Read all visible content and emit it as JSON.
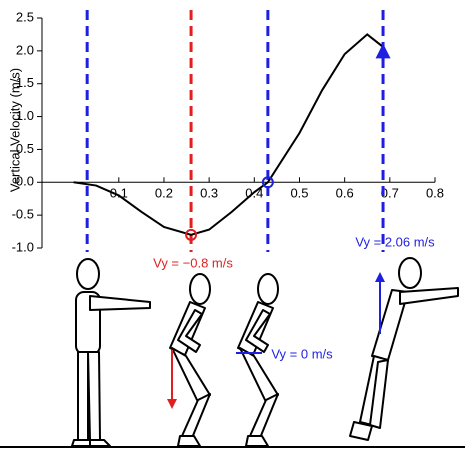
{
  "chart_data": {
    "type": "line",
    "ylabel": "Vertical Velocity (m/s)",
    "x": [
      0,
      0.05,
      0.1,
      0.15,
      0.2,
      0.26,
      0.3,
      0.35,
      0.4,
      0.43,
      0.5,
      0.55,
      0.6,
      0.65,
      0.685
    ],
    "series": [
      {
        "color": "#000000",
        "values": [
          0,
          -0.05,
          -0.2,
          -0.45,
          -0.68,
          -0.8,
          -0.72,
          -0.45,
          -0.15,
          0,
          0.75,
          1.4,
          1.95,
          2.25,
          2.06
        ]
      }
    ],
    "xlim": [
      -0.07,
      0.8
    ],
    "xticks": [
      0.1,
      0.2,
      0.3,
      0.4,
      0.5,
      0.6,
      0.7,
      0.8
    ],
    "ylim": [
      -1.0,
      2.5
    ],
    "yticks": [
      {
        "value": -1.0,
        "label": "-1.0"
      },
      -0.5,
      {
        "value": 0,
        "label": "0.0"
      },
      0.5,
      {
        "value": 1.0,
        "label": "1.0"
      },
      1.5,
      {
        "value": 2.0,
        "label": "2.0"
      },
      2.5
    ],
    "phase_lines": [
      {
        "x": 0.03,
        "color": "#1f1fe0"
      },
      {
        "x": 0.26,
        "color": "#e02020"
      },
      {
        "x": 0.43,
        "color": "#1f1fe0"
      },
      {
        "x": 0.685,
        "color": "#1f1fe0"
      }
    ],
    "markers": [
      {
        "x": 0.26,
        "y": -0.8,
        "shape": "circle",
        "color": "#e02020",
        "label": "Vy = −0.8 m/s"
      },
      {
        "x": 0.43,
        "y": 0,
        "shape": "circle",
        "color": "#1f1fe0",
        "label": "Vy = 0 m/s"
      },
      {
        "x": 0.685,
        "y": 2.06,
        "shape": "arrow",
        "color": "#1f1fe0",
        "label": "Vy = 2.06 m/s"
      }
    ]
  }
}
